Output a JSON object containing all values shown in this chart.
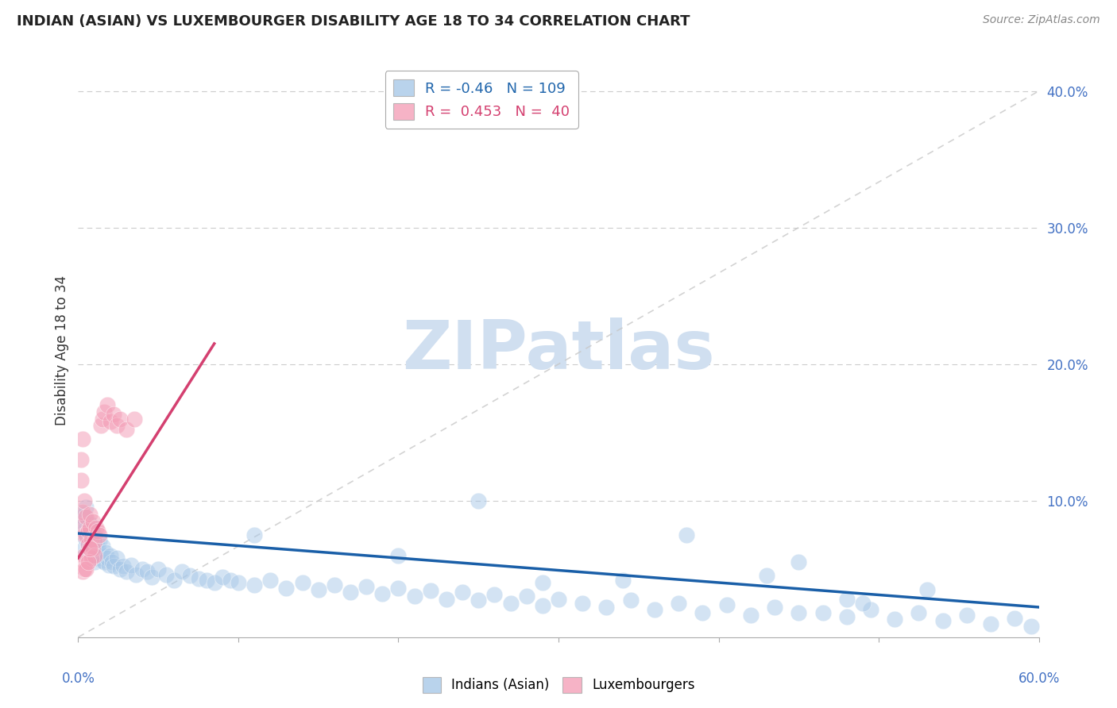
{
  "title": "INDIAN (ASIAN) VS LUXEMBOURGER DISABILITY AGE 18 TO 34 CORRELATION CHART",
  "source": "Source: ZipAtlas.com",
  "ylabel": "Disability Age 18 to 34",
  "xlim": [
    0.0,
    0.6
  ],
  "ylim": [
    0.0,
    0.42
  ],
  "blue_R": -0.46,
  "blue_N": 109,
  "pink_R": 0.453,
  "pink_N": 40,
  "blue_color": "#a8c8e8",
  "pink_color": "#f4a0b8",
  "blue_line_color": "#1a5fa8",
  "pink_line_color": "#d44070",
  "diag_color": "#c8c8c8",
  "watermark_text": "ZIPatlas",
  "watermark_color": "#d0dff0",
  "legend_label_blue": "Indians (Asian)",
  "legend_label_pink": "Luxembourgers",
  "blue_trend_x0": 0.0,
  "blue_trend_y0": 0.076,
  "blue_trend_x1": 0.6,
  "blue_trend_y1": 0.022,
  "pink_trend_x0": 0.0,
  "pink_trend_y0": 0.058,
  "pink_trend_x1": 0.085,
  "pink_trend_y1": 0.215,
  "blue_scatter_x": [
    0.002,
    0.003,
    0.003,
    0.004,
    0.004,
    0.005,
    0.005,
    0.005,
    0.006,
    0.006,
    0.006,
    0.007,
    0.007,
    0.007,
    0.008,
    0.008,
    0.008,
    0.009,
    0.009,
    0.01,
    0.01,
    0.01,
    0.011,
    0.011,
    0.012,
    0.012,
    0.013,
    0.013,
    0.014,
    0.015,
    0.015,
    0.016,
    0.017,
    0.018,
    0.019,
    0.02,
    0.021,
    0.022,
    0.024,
    0.026,
    0.028,
    0.03,
    0.033,
    0.036,
    0.04,
    0.043,
    0.046,
    0.05,
    0.055,
    0.06,
    0.065,
    0.07,
    0.075,
    0.08,
    0.085,
    0.09,
    0.095,
    0.1,
    0.11,
    0.12,
    0.13,
    0.14,
    0.15,
    0.16,
    0.17,
    0.18,
    0.19,
    0.2,
    0.21,
    0.22,
    0.23,
    0.24,
    0.25,
    0.26,
    0.27,
    0.28,
    0.29,
    0.3,
    0.315,
    0.33,
    0.345,
    0.36,
    0.375,
    0.39,
    0.405,
    0.42,
    0.435,
    0.45,
    0.465,
    0.48,
    0.495,
    0.51,
    0.525,
    0.54,
    0.555,
    0.57,
    0.585,
    0.595,
    0.25,
    0.38,
    0.43,
    0.48,
    0.53,
    0.34,
    0.29,
    0.11,
    0.2,
    0.45,
    0.49
  ],
  "blue_scatter_y": [
    0.082,
    0.075,
    0.088,
    0.065,
    0.09,
    0.072,
    0.08,
    0.095,
    0.068,
    0.078,
    0.085,
    0.07,
    0.076,
    0.083,
    0.065,
    0.073,
    0.079,
    0.06,
    0.077,
    0.055,
    0.068,
    0.074,
    0.063,
    0.07,
    0.058,
    0.066,
    0.062,
    0.071,
    0.056,
    0.06,
    0.067,
    0.055,
    0.062,
    0.058,
    0.053,
    0.06,
    0.055,
    0.052,
    0.058,
    0.05,
    0.052,
    0.048,
    0.053,
    0.046,
    0.05,
    0.048,
    0.044,
    0.05,
    0.046,
    0.042,
    0.048,
    0.045,
    0.043,
    0.042,
    0.04,
    0.044,
    0.042,
    0.04,
    0.038,
    0.042,
    0.036,
    0.04,
    0.035,
    0.038,
    0.033,
    0.037,
    0.032,
    0.036,
    0.03,
    0.034,
    0.028,
    0.033,
    0.027,
    0.031,
    0.025,
    0.03,
    0.023,
    0.028,
    0.025,
    0.022,
    0.027,
    0.02,
    0.025,
    0.018,
    0.024,
    0.016,
    0.022,
    0.055,
    0.018,
    0.015,
    0.02,
    0.013,
    0.018,
    0.012,
    0.016,
    0.01,
    0.014,
    0.008,
    0.1,
    0.075,
    0.045,
    0.028,
    0.035,
    0.042,
    0.04,
    0.075,
    0.06,
    0.018,
    0.025
  ],
  "pink_scatter_x": [
    0.002,
    0.002,
    0.003,
    0.003,
    0.003,
    0.004,
    0.004,
    0.004,
    0.005,
    0.005,
    0.005,
    0.006,
    0.006,
    0.007,
    0.007,
    0.007,
    0.008,
    0.008,
    0.009,
    0.009,
    0.01,
    0.01,
    0.011,
    0.012,
    0.013,
    0.014,
    0.015,
    0.016,
    0.018,
    0.02,
    0.022,
    0.024,
    0.026,
    0.03,
    0.035,
    0.003,
    0.004,
    0.005,
    0.006,
    0.007
  ],
  "pink_scatter_y": [
    0.115,
    0.13,
    0.082,
    0.092,
    0.145,
    0.075,
    0.1,
    0.06,
    0.088,
    0.075,
    0.055,
    0.078,
    0.068,
    0.065,
    0.08,
    0.09,
    0.072,
    0.058,
    0.085,
    0.065,
    0.07,
    0.06,
    0.08,
    0.078,
    0.075,
    0.155,
    0.16,
    0.165,
    0.17,
    0.158,
    0.163,
    0.155,
    0.16,
    0.152,
    0.16,
    0.048,
    0.05,
    0.05,
    0.055,
    0.065
  ]
}
